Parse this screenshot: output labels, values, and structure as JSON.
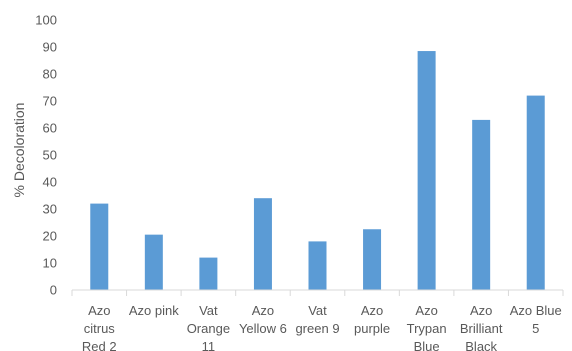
{
  "chart_data": {
    "type": "bar",
    "title": "",
    "xlabel": "",
    "ylabel": "% Decoloration",
    "ylim": [
      0,
      100
    ],
    "yticks": [
      0,
      10,
      20,
      30,
      40,
      50,
      60,
      70,
      80,
      90,
      100
    ],
    "grid": false,
    "legend": "none",
    "bar_color": "#5b9bd5",
    "categories": [
      [
        "Azo",
        "citrus",
        "Red 2"
      ],
      [
        "Azo pink"
      ],
      [
        "Vat",
        "Orange",
        "11"
      ],
      [
        "Azo",
        "Yellow 6"
      ],
      [
        "Vat",
        "green 9"
      ],
      [
        "Azo",
        "purple"
      ],
      [
        "Azo",
        "Trypan",
        "Blue"
      ],
      [
        "Azo",
        "Brilliant",
        "Black"
      ],
      [
        "Azo Blue",
        "5"
      ]
    ],
    "values": [
      32,
      20.5,
      12,
      34,
      18,
      22.5,
      88.5,
      63,
      72
    ]
  }
}
